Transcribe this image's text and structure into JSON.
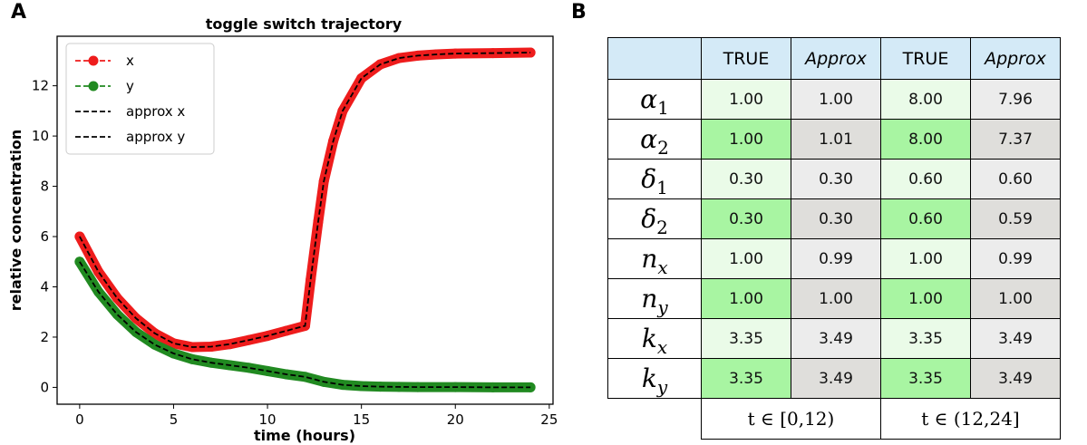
{
  "panel_a_label": "A",
  "panel_b_label": "B",
  "chart_data": {
    "type": "line",
    "title": "toggle switch trajectory",
    "xlabel": "time (hours)",
    "ylabel": "relative concentration",
    "xlim": [
      -1.2,
      25.2
    ],
    "ylim": [
      -0.67,
      13.97
    ],
    "xticks": [
      0,
      5,
      10,
      15,
      20,
      25
    ],
    "yticks": [
      0,
      2,
      4,
      6,
      8,
      10,
      12
    ],
    "grid": false,
    "legend_position": "top-left",
    "series": [
      {
        "name": "x",
        "color": "#ee1c1c",
        "style": "solid-marker",
        "x": [
          0,
          1,
          2,
          3,
          4,
          5,
          6,
          7,
          8,
          9,
          10,
          11,
          12,
          12.3,
          12.7,
          13,
          13.5,
          14,
          15,
          16,
          17,
          18,
          19,
          20,
          22,
          24
        ],
        "y": [
          6.0,
          4.6,
          3.55,
          2.75,
          2.15,
          1.75,
          1.6,
          1.62,
          1.72,
          1.88,
          2.05,
          2.25,
          2.45,
          4.3,
          6.6,
          8.2,
          9.8,
          11.0,
          12.3,
          12.85,
          13.1,
          13.2,
          13.25,
          13.28,
          13.3,
          13.32
        ]
      },
      {
        "name": "y",
        "color": "#218a21",
        "style": "solid-marker",
        "x": [
          0,
          1,
          2,
          3,
          4,
          5,
          6,
          7,
          8,
          9,
          10,
          11,
          12,
          13,
          14,
          15,
          16,
          17,
          18,
          20,
          22,
          24
        ],
        "y": [
          5.0,
          3.8,
          2.9,
          2.2,
          1.7,
          1.35,
          1.12,
          0.98,
          0.88,
          0.78,
          0.65,
          0.52,
          0.42,
          0.22,
          0.1,
          0.05,
          0.03,
          0.02,
          0.01,
          0.01,
          0.0,
          0.0
        ]
      },
      {
        "name": "approx x",
        "color": "#000000",
        "style": "dashed",
        "x": [
          0,
          1,
          2,
          3,
          4,
          5,
          6,
          7,
          8,
          9,
          10,
          11,
          12,
          12.3,
          12.7,
          13,
          13.5,
          14,
          15,
          16,
          17,
          18,
          19,
          20,
          22,
          24
        ],
        "y": [
          6.0,
          4.6,
          3.55,
          2.75,
          2.15,
          1.75,
          1.6,
          1.62,
          1.72,
          1.88,
          2.05,
          2.25,
          2.45,
          4.3,
          6.6,
          8.2,
          9.8,
          11.0,
          12.3,
          12.85,
          13.1,
          13.2,
          13.25,
          13.28,
          13.3,
          13.32
        ]
      },
      {
        "name": "approx y",
        "color": "#000000",
        "style": "dashed",
        "x": [
          0,
          1,
          2,
          3,
          4,
          5,
          6,
          7,
          8,
          9,
          10,
          11,
          12,
          13,
          14,
          15,
          16,
          17,
          18,
          20,
          22,
          24
        ],
        "y": [
          5.0,
          3.8,
          2.9,
          2.2,
          1.7,
          1.35,
          1.12,
          0.98,
          0.88,
          0.78,
          0.65,
          0.52,
          0.42,
          0.22,
          0.1,
          0.05,
          0.03,
          0.02,
          0.01,
          0.01,
          0.0,
          0.0
        ]
      }
    ]
  },
  "table": {
    "headers": [
      "TRUE",
      "Approx",
      "TRUE",
      "Approx"
    ],
    "rows": [
      {
        "param": "α",
        "sub": "1",
        "values": [
          "1.00",
          "1.00",
          "8.00",
          "7.96"
        ]
      },
      {
        "param": "α",
        "sub": "2",
        "values": [
          "1.00",
          "1.01",
          "8.00",
          "7.37"
        ]
      },
      {
        "param": "δ",
        "sub": "1",
        "values": [
          "0.30",
          "0.30",
          "0.60",
          "0.60"
        ]
      },
      {
        "param": "δ",
        "sub": "2",
        "values": [
          "0.30",
          "0.30",
          "0.60",
          "0.59"
        ]
      },
      {
        "param": "n",
        "sub": "x",
        "values": [
          "1.00",
          "0.99",
          "1.00",
          "0.99"
        ]
      },
      {
        "param": "n",
        "sub": "y",
        "values": [
          "1.00",
          "1.00",
          "1.00",
          "1.00"
        ]
      },
      {
        "param": "k",
        "sub": "x",
        "values": [
          "3.35",
          "3.49",
          "3.35",
          "3.49"
        ]
      },
      {
        "param": "k",
        "sub": "y",
        "values": [
          "3.35",
          "3.49",
          "3.35",
          "3.49"
        ]
      }
    ],
    "footer": [
      "t ∈ [0,12)",
      "t ∈ (12,24]"
    ],
    "colors": {
      "header_bg": "#d4eaf7",
      "true_light": "#eafbe8",
      "true_dark": "#a8f5a2",
      "approx_light": "#ececec",
      "approx_dark": "#dfdedb"
    }
  }
}
